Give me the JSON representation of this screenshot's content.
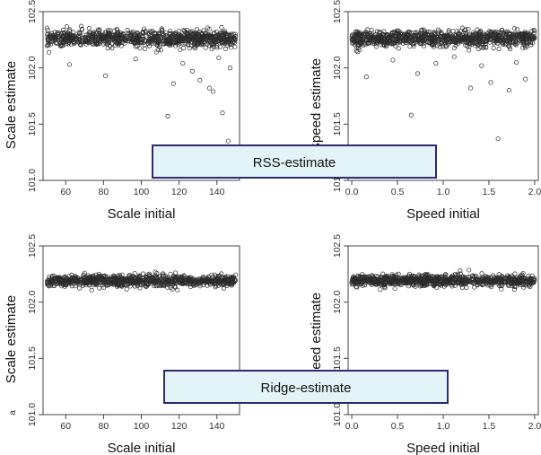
{
  "chart_data": [
    {
      "type": "scatter",
      "xlabel": "Scale initial",
      "ylabel": "Scale estimate",
      "xlim": [
        48,
        152
      ],
      "ylim": [
        101.0,
        102.5
      ],
      "xticks": [
        "60",
        "80",
        "100",
        "120",
        "140"
      ],
      "yticks": [
        "101.0",
        "101.5",
        "102.0",
        "102.5"
      ],
      "band": {
        "x_range": [
          50,
          150
        ],
        "center": 102.26,
        "spread": 0.035
      },
      "outliers": [
        [
          62,
          102.03
        ],
        [
          78,
          102.34
        ],
        [
          81,
          101.93
        ],
        [
          97,
          102.08
        ],
        [
          108,
          102.14
        ],
        [
          114,
          101.57
        ],
        [
          117,
          101.86
        ],
        [
          122,
          102.04
        ],
        [
          127,
          101.97
        ],
        [
          131,
          101.89
        ],
        [
          136,
          101.82
        ],
        [
          138,
          101.79
        ],
        [
          141,
          102.09
        ],
        [
          143,
          101.6
        ],
        [
          146,
          101.35
        ],
        [
          147,
          102.0
        ]
      ]
    },
    {
      "type": "scatter",
      "xlabel": "Speed initial",
      "ylabel": "Speed estimate",
      "xlim": [
        -0.04,
        2.04
      ],
      "ylim": [
        101.0,
        102.5
      ],
      "xticks": [
        "0.0",
        "0.5",
        "1.0",
        "1.5",
        "2.0"
      ],
      "yticks": [
        "101.0",
        "101.5",
        "102.0",
        "102.5"
      ],
      "band": {
        "x_range": [
          0.0,
          2.0
        ],
        "center": 102.26,
        "spread": 0.035
      },
      "outliers": [
        [
          0.05,
          102.15
        ],
        [
          0.16,
          101.92
        ],
        [
          0.45,
          102.07
        ],
        [
          0.65,
          101.58
        ],
        [
          0.72,
          101.95
        ],
        [
          0.85,
          101.3
        ],
        [
          0.92,
          102.04
        ],
        [
          1.12,
          102.1
        ],
        [
          1.3,
          101.82
        ],
        [
          1.42,
          102.02
        ],
        [
          1.52,
          101.87
        ],
        [
          1.6,
          101.37
        ],
        [
          1.72,
          101.8
        ],
        [
          1.8,
          102.05
        ],
        [
          1.9,
          101.9
        ]
      ]
    },
    {
      "type": "scatter",
      "xlabel": "Scale initial",
      "ylabel": "Scale estimate",
      "ylabel_prefix": "a",
      "xlim": [
        48,
        152
      ],
      "ylim": [
        101.0,
        102.5
      ],
      "xticks": [
        "60",
        "80",
        "100",
        "120",
        "140"
      ],
      "yticks": [
        "101.0",
        "101.5",
        "102.0",
        "102.5"
      ],
      "band": {
        "x_range": [
          50,
          150
        ],
        "center": 102.19,
        "spread": 0.025
      },
      "outliers": []
    },
    {
      "type": "scatter",
      "xlabel": "Speed initial",
      "ylabel": "Speed estimate",
      "xlim": [
        -0.04,
        2.04
      ],
      "ylim": [
        101.0,
        102.5
      ],
      "xticks": [
        "0.0",
        "0.5",
        "1.0",
        "1.5",
        "2.0"
      ],
      "yticks": [
        "101.0",
        "101.5",
        "102.0",
        "102.5"
      ],
      "band": {
        "x_range": [
          0.0,
          2.0
        ],
        "center": 102.19,
        "spread": 0.025
      },
      "outliers": []
    }
  ],
  "labels": {
    "top": "RSS-estimate",
    "bottom": "Ridge-estimate"
  },
  "colors": {
    "marker": "#2b2b2b",
    "label_box_fill": "#e3f4f8",
    "label_box_stroke": "#2e2a6e"
  }
}
